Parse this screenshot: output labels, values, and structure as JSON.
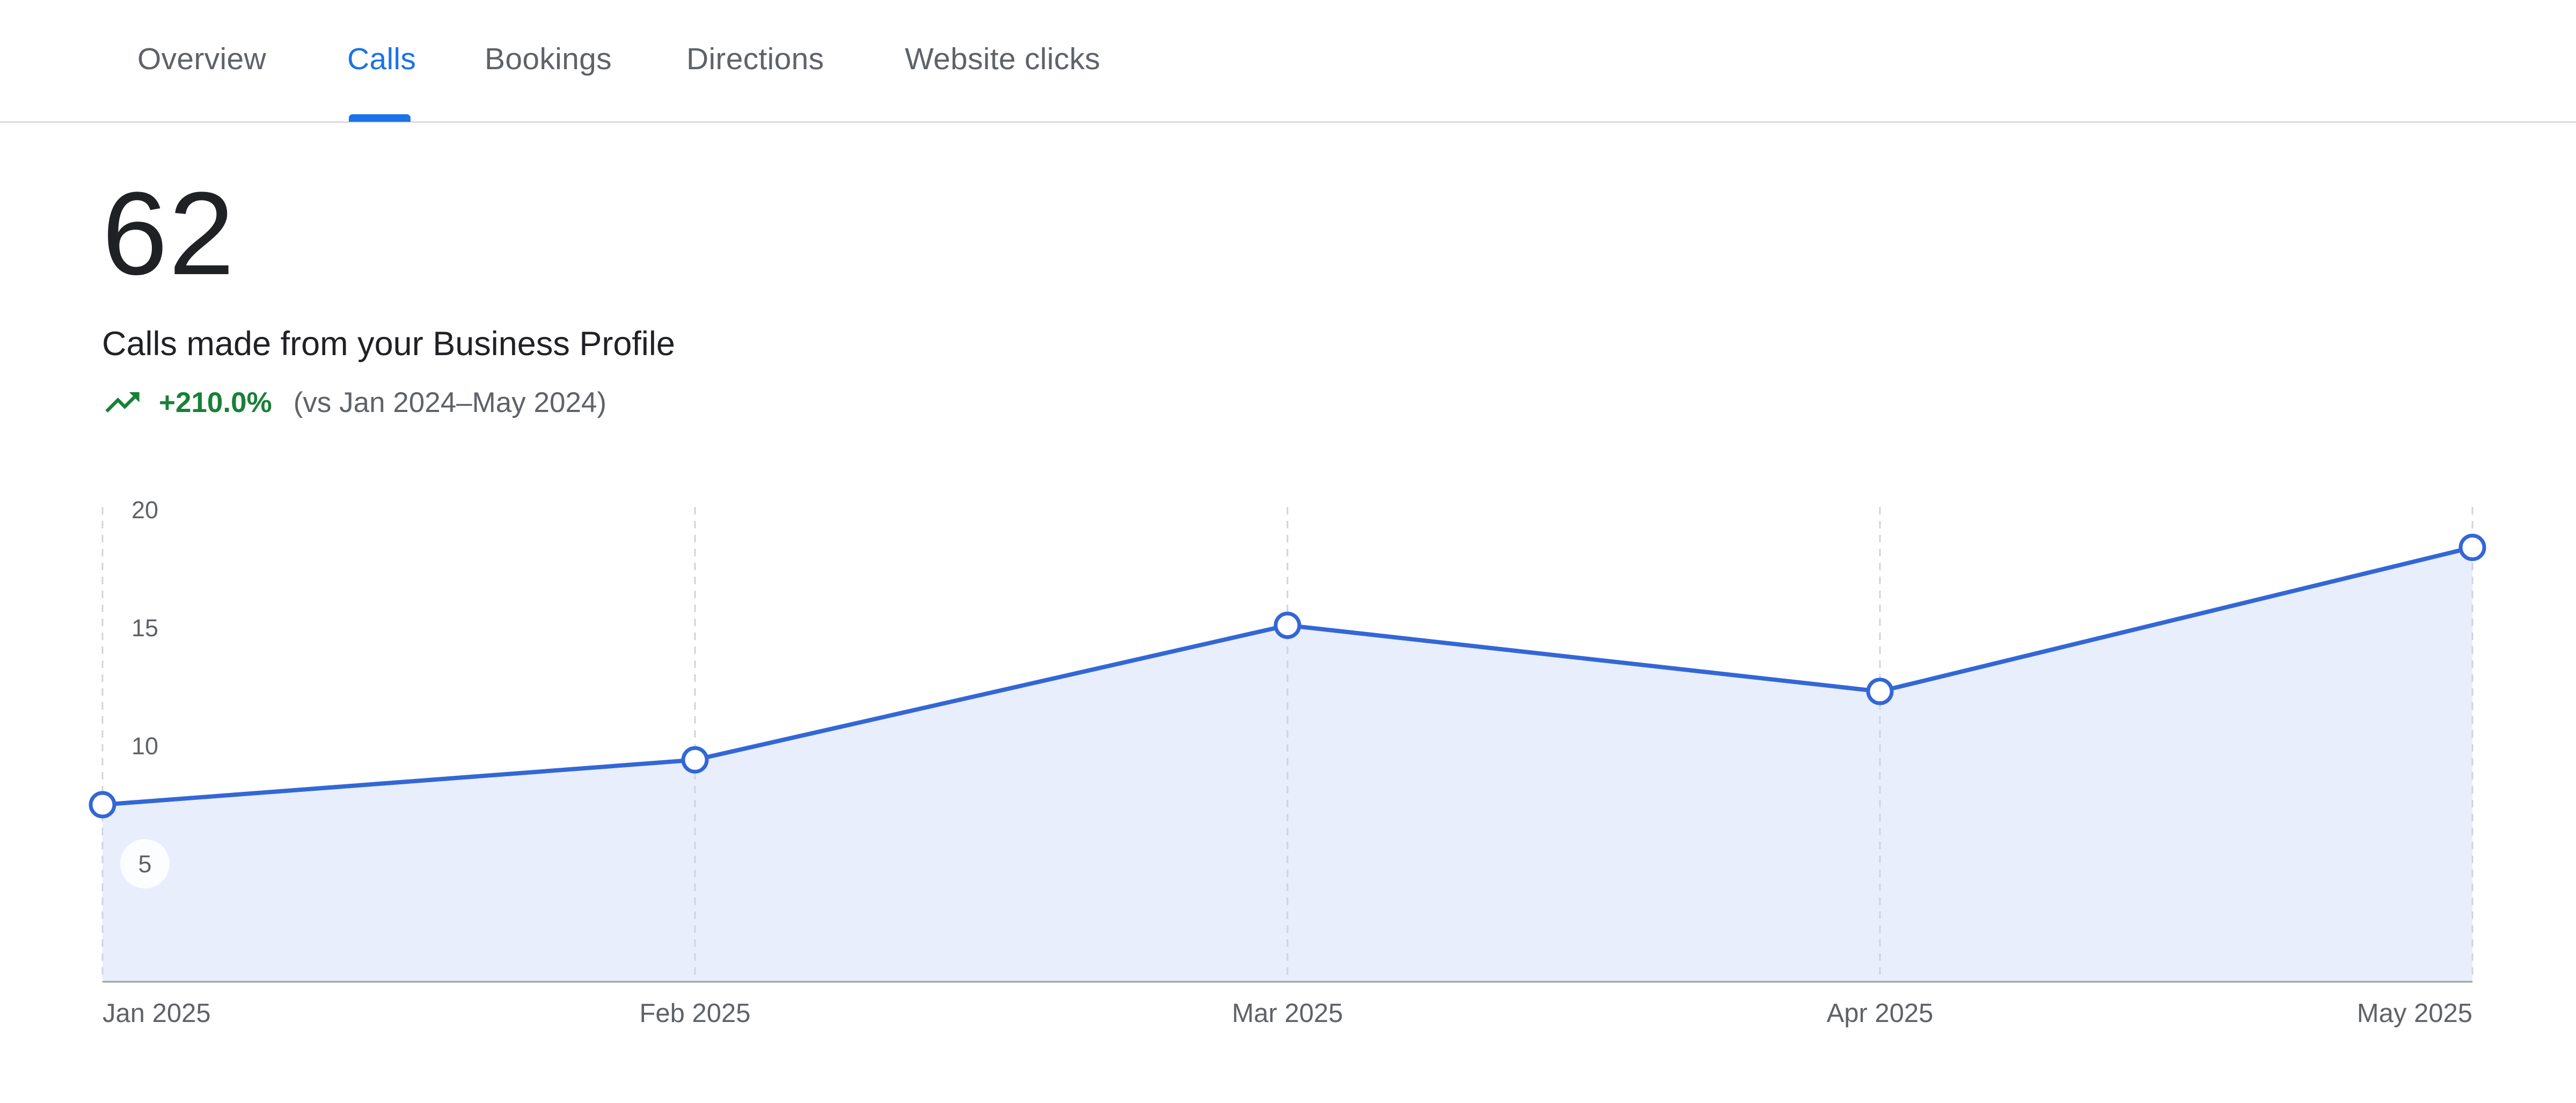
{
  "tabs": [
    {
      "label": "Overview",
      "active": false
    },
    {
      "label": "Calls",
      "active": true
    },
    {
      "label": "Bookings",
      "active": false
    },
    {
      "label": "Directions",
      "active": false
    },
    {
      "label": "Website clicks",
      "active": false
    }
  ],
  "metric": {
    "value": "62",
    "description": "Calls made from your Business Profile",
    "change": "+210.0%",
    "comparison": "(vs Jan 2024–May 2024)",
    "trend_icon": "trending-up-icon"
  },
  "colors": {
    "accent": "#1a73e8",
    "line": "#3367d6",
    "area": "#e8eefc",
    "positive": "#188038"
  },
  "chart_data": {
    "type": "area",
    "categories": [
      "Jan 2025",
      "Feb 2025",
      "Mar 2025",
      "Apr 2025",
      "May 2025"
    ],
    "values": [
      7.5,
      9.4,
      15.1,
      12.3,
      18.4
    ],
    "y_ticks": [
      "20",
      "15",
      "10",
      "5"
    ],
    "ylim": [
      0,
      20
    ],
    "grid": "vertical dashed",
    "legend": "none"
  }
}
